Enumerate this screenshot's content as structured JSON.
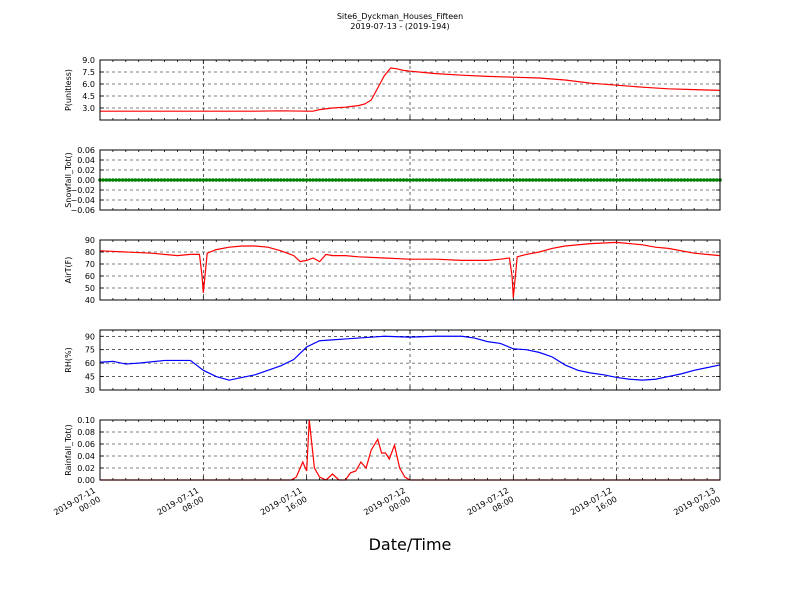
{
  "title_line1": "Site6_Dyckman_Houses_Fifteen",
  "title_line2": "2019-07-13 - (2019-194)",
  "xlabel": "Date/Time",
  "x_ticks": [
    {
      "line1": "2019-07-11",
      "line2": "00:00"
    },
    {
      "line1": "2019-07-11",
      "line2": "08:00"
    },
    {
      "line1": "2019-07-11",
      "line2": "16:00"
    },
    {
      "line1": "2019-07-12",
      "line2": "00:00"
    },
    {
      "line1": "2019-07-12",
      "line2": "08:00"
    },
    {
      "line1": "2019-07-12",
      "line2": "16:00"
    },
    {
      "line1": "2019-07-13",
      "line2": "00:00"
    }
  ],
  "chart_data": [
    {
      "type": "line",
      "ylabel": "P(unitless)",
      "ylim": [
        1.5,
        9.0
      ],
      "yticks": [
        "3.0",
        "4.5",
        "6.0",
        "7.5",
        "9.0"
      ],
      "ytick_values": [
        3.0,
        4.5,
        6.0,
        7.5,
        9.0
      ],
      "grid": true,
      "color": "#ff0000",
      "x_unit": "hours since 2019-07-11 00:00",
      "x": [
        0,
        4,
        8,
        12,
        14,
        16,
        16.5,
        17,
        18,
        19,
        19.5,
        20,
        20.5,
        21,
        21.5,
        22,
        22.5,
        23,
        23.5,
        24,
        25,
        26,
        28,
        30,
        32,
        34,
        36,
        38,
        40,
        42,
        44,
        46,
        48
      ],
      "values": [
        2.6,
        2.6,
        2.6,
        2.6,
        2.65,
        2.6,
        2.6,
        2.8,
        3.0,
        3.1,
        3.2,
        3.3,
        3.5,
        4.0,
        5.5,
        7.0,
        8.0,
        7.9,
        7.7,
        7.6,
        7.45,
        7.3,
        7.1,
        6.95,
        6.85,
        6.75,
        6.5,
        6.1,
        5.85,
        5.6,
        5.4,
        5.3,
        5.2
      ]
    },
    {
      "type": "scatter",
      "ylabel": "Snowfall_Tot()",
      "ylim": [
        -0.06,
        0.06
      ],
      "yticks": [
        "−0.06",
        "−0.04",
        "−0.02",
        "0.00",
        "0.02",
        "0.04",
        "0.06"
      ],
      "ytick_values": [
        -0.06,
        -0.04,
        -0.02,
        0.0,
        0.02,
        0.04,
        0.06
      ],
      "grid": true,
      "color": "#008000",
      "x_range": [
        0,
        48
      ],
      "constant_value": 0.0
    },
    {
      "type": "line",
      "ylabel": "AirT(F)",
      "ylim": [
        40,
        90
      ],
      "yticks": [
        "40",
        "50",
        "60",
        "70",
        "80",
        "90"
      ],
      "ytick_values": [
        40,
        50,
        60,
        70,
        80,
        90
      ],
      "grid": true,
      "color": "#ff0000",
      "x": [
        0,
        2,
        4,
        6,
        7,
        7.7,
        7.9,
        8.0,
        8.3,
        9,
        10,
        11,
        12,
        13,
        14,
        15,
        15.5,
        16,
        16.5,
        17,
        17.5,
        18,
        19,
        20,
        22,
        24,
        26,
        28,
        30,
        31,
        31.7,
        31.9,
        32.0,
        32.3,
        33,
        34,
        35,
        36,
        38,
        40,
        42,
        43,
        44,
        46,
        48
      ],
      "values": [
        81,
        80,
        79,
        77,
        78,
        78,
        60,
        46,
        79,
        82,
        84,
        85,
        85,
        84,
        81,
        77,
        72,
        73,
        75,
        72,
        78,
        77,
        77,
        76,
        75,
        74,
        74,
        73,
        73,
        74,
        75,
        60,
        42,
        76,
        78,
        80,
        83,
        85,
        87,
        88,
        86,
        84,
        83,
        79,
        77
      ]
    },
    {
      "type": "line",
      "ylabel": "RH(%)",
      "ylim": [
        30,
        97
      ],
      "yticks": [
        "30",
        "45",
        "60",
        "75",
        "90"
      ],
      "ytick_values": [
        30,
        45,
        60,
        75,
        90
      ],
      "grid": true,
      "color": "#0000ff",
      "x": [
        0,
        1,
        2,
        3,
        5,
        7,
        8,
        9,
        10,
        11,
        12,
        13,
        14,
        15,
        16,
        17,
        18,
        19,
        20,
        22,
        24,
        26,
        28,
        29,
        30,
        31,
        32,
        33,
        34,
        35,
        36,
        37,
        38,
        39,
        40,
        41,
        42,
        43,
        44,
        45,
        46,
        47,
        48
      ],
      "values": [
        61,
        62,
        59,
        60,
        63,
        63,
        52,
        45,
        41,
        44,
        47,
        52,
        57,
        64,
        78,
        85,
        86,
        87,
        88,
        90,
        89,
        90,
        90,
        88,
        84,
        82,
        76,
        75,
        72,
        67,
        58,
        52,
        49,
        47,
        44,
        42,
        41,
        42,
        45,
        48,
        52,
        55,
        58
      ]
    },
    {
      "type": "line",
      "ylabel": "Rainfall_Tot()",
      "ylim": [
        0.0,
        0.1
      ],
      "yticks": [
        "0.00",
        "0.02",
        "0.04",
        "0.06",
        "0.08",
        "0.10"
      ],
      "ytick_values": [
        0.0,
        0.02,
        0.04,
        0.06,
        0.08,
        0.1
      ],
      "grid": true,
      "color": "#ff0000",
      "x": [
        0,
        14.8,
        15.2,
        15.7,
        16.0,
        16.2,
        16.6,
        17.0,
        17.5,
        18.0,
        18.5,
        19.0,
        19.4,
        19.8,
        20.2,
        20.6,
        21.0,
        21.5,
        21.8,
        22.1,
        22.4,
        22.8,
        23.2,
        23.6,
        24,
        48
      ],
      "values": [
        0,
        0,
        0.005,
        0.03,
        0.015,
        0.1,
        0.02,
        0.005,
        0,
        0.01,
        0,
        0,
        0.012,
        0.015,
        0.03,
        0.02,
        0.05,
        0.068,
        0.045,
        0.045,
        0.035,
        0.058,
        0.02,
        0.005,
        0,
        0
      ]
    }
  ]
}
